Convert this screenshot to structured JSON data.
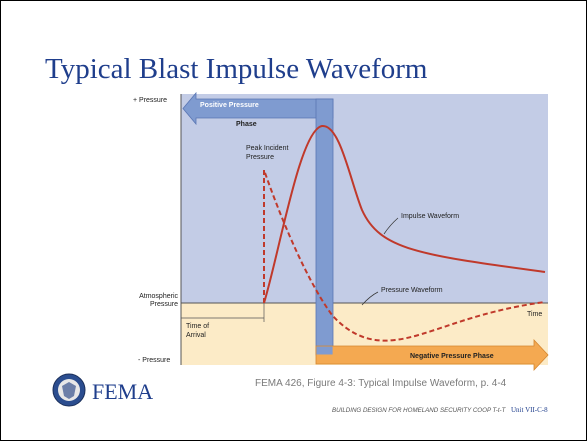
{
  "header": {
    "title": "Typical Blast Impulse Waveform"
  },
  "diagram": {
    "axis_labels": {
      "plus_pressure": "+ Pressure",
      "atmospheric": [
        "Atmospheric",
        "Pressure"
      ],
      "minus_pressure": "- Pressure",
      "time": "Time",
      "time_of_arrival": [
        "Time of",
        "Arrival"
      ]
    },
    "phases": {
      "positive": [
        "Positive Pressure",
        "Phase"
      ],
      "negative": "Negative Pressure Phase"
    },
    "annotations": {
      "peak_incident": [
        "Peak Incident",
        "Pressure"
      ],
      "impulse": "Impulse Waveform",
      "pressure": "Pressure Waveform"
    }
  },
  "footer": {
    "logo_text": "FEMA",
    "caption": "FEMA 426, Figure 4-3:  Typical Impulse Waveform, p. 4-4",
    "course": "BUILDING DESIGN FOR HOMELAND SECURITY COOP T-t-T",
    "unit": "Unit VII-C-8"
  }
}
